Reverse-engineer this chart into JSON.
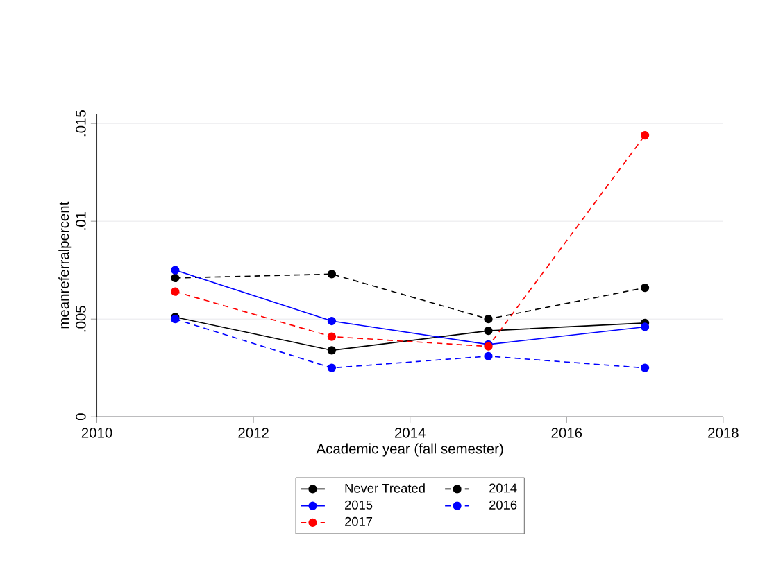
{
  "chart_data": {
    "type": "line",
    "xlabel": "Academic year (fall semester)",
    "ylabel": "meanreferralpercent",
    "x": [
      2011,
      2013,
      2015,
      2017
    ],
    "series": [
      {
        "name": "Never Treated",
        "color": "#000000",
        "line_style": "solid",
        "values": [
          0.0051,
          0.0034,
          0.0044,
          0.0048
        ]
      },
      {
        "name": "2014",
        "color": "#000000",
        "line_style": "dashed",
        "values": [
          0.0071,
          0.0073,
          0.005,
          0.0066
        ]
      },
      {
        "name": "2015",
        "color": "#0000ff",
        "line_style": "solid",
        "values": [
          0.0075,
          0.0049,
          0.0037,
          0.0046
        ]
      },
      {
        "name": "2016",
        "color": "#0000ff",
        "line_style": "dashed",
        "values": [
          0.005,
          0.0025,
          0.0031,
          0.0025
        ]
      },
      {
        "name": "2017",
        "color": "#ff0000",
        "line_style": "dashed",
        "values": [
          0.0064,
          0.0041,
          0.0036,
          0.0144
        ]
      }
    ],
    "xlim": [
      2010,
      2018
    ],
    "xticks": [
      2010,
      2012,
      2014,
      2016,
      2018
    ],
    "ylim": [
      0,
      0.0155
    ],
    "yticks": [
      0,
      {
        "value": 0.005,
        "label": ".005"
      },
      {
        "value": 0.01,
        "label": ".01"
      },
      {
        "value": 0.015,
        "label": ".015"
      }
    ],
    "grid": "y",
    "legend": "bottom",
    "marker": "circle"
  }
}
